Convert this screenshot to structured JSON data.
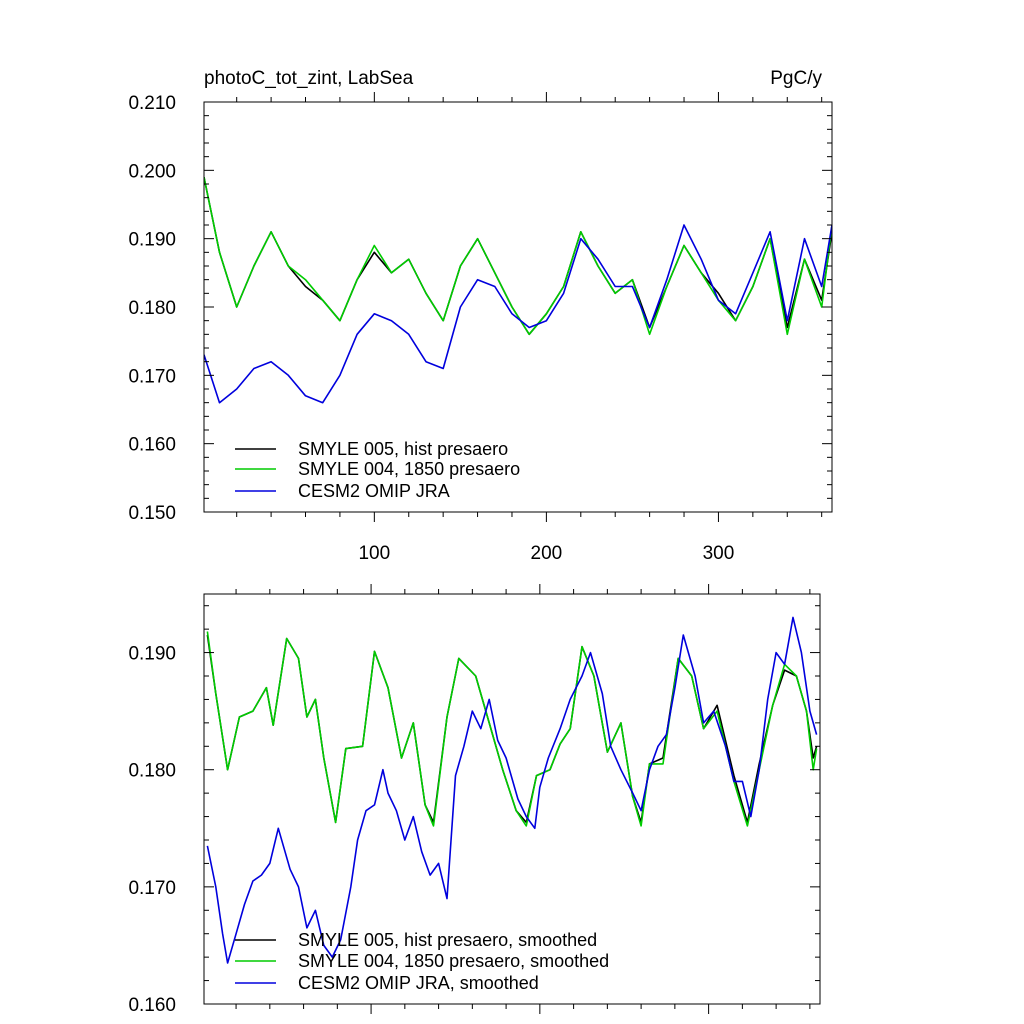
{
  "chart_data": [
    {
      "type": "line",
      "title": "photoC_tot_zint, LabSea",
      "units": "PgC/y",
      "xlabel": "",
      "ylabel": "",
      "xlim": [
        1,
        366
      ],
      "ylim": [
        0.15,
        0.21
      ],
      "xticks": [
        100,
        200,
        300
      ],
      "xtick_labels": [
        "100",
        "200",
        "300"
      ],
      "yticks": [
        0.15,
        0.16,
        0.17,
        0.18,
        0.19,
        0.2,
        0.21
      ],
      "ytick_labels": [
        "0.150",
        "0.160",
        "0.170",
        "0.180",
        "0.190",
        "0.200",
        "0.210"
      ],
      "grid": false,
      "legend_position": "bottom-left",
      "series": [
        {
          "name": "SMYLE 005, hist presaero",
          "color": "#000000",
          "x": [
            1,
            10,
            20,
            30,
            40,
            50,
            60,
            70,
            80,
            90,
            100,
            110,
            120,
            130,
            140,
            150,
            160,
            170,
            180,
            190,
            200,
            210,
            220,
            230,
            240,
            250,
            260,
            270,
            280,
            290,
            300,
            310,
            320,
            330,
            340,
            350,
            360,
            366
          ],
          "values": [
            0.199,
            0.188,
            0.18,
            0.186,
            0.191,
            0.186,
            0.183,
            0.181,
            0.178,
            0.184,
            0.188,
            0.185,
            0.187,
            0.182,
            0.178,
            0.186,
            0.19,
            0.185,
            0.18,
            0.176,
            0.179,
            0.183,
            0.191,
            0.186,
            0.182,
            0.184,
            0.177,
            0.183,
            0.189,
            0.185,
            0.182,
            0.178,
            0.183,
            0.19,
            0.177,
            0.187,
            0.181,
            0.191
          ]
        },
        {
          "name": "SMYLE 004, 1850 presaero",
          "color": "#00cc00",
          "x": [
            1,
            10,
            20,
            30,
            40,
            50,
            60,
            70,
            80,
            90,
            100,
            110,
            120,
            130,
            140,
            150,
            160,
            170,
            180,
            190,
            200,
            210,
            220,
            230,
            240,
            250,
            260,
            270,
            280,
            290,
            300,
            310,
            320,
            330,
            340,
            350,
            360,
            366
          ],
          "values": [
            0.199,
            0.188,
            0.18,
            0.186,
            0.191,
            0.186,
            0.184,
            0.181,
            0.178,
            0.184,
            0.189,
            0.185,
            0.187,
            0.182,
            0.178,
            0.186,
            0.19,
            0.185,
            0.18,
            0.176,
            0.179,
            0.183,
            0.191,
            0.186,
            0.182,
            0.184,
            0.176,
            0.183,
            0.189,
            0.185,
            0.181,
            0.178,
            0.183,
            0.19,
            0.176,
            0.187,
            0.18,
            0.192
          ]
        },
        {
          "name": "CESM2 OMIP JRA",
          "color": "#0000dd",
          "x": [
            1,
            10,
            20,
            30,
            40,
            50,
            60,
            70,
            80,
            90,
            100,
            110,
            120,
            130,
            140,
            150,
            160,
            170,
            180,
            190,
            200,
            210,
            220,
            230,
            240,
            250,
            260,
            270,
            280,
            290,
            300,
            310,
            320,
            330,
            340,
            350,
            360,
            366
          ],
          "values": [
            0.173,
            0.166,
            0.168,
            0.171,
            0.172,
            0.17,
            0.167,
            0.166,
            0.17,
            0.176,
            0.179,
            0.178,
            0.176,
            0.172,
            0.171,
            0.18,
            0.184,
            0.183,
            0.179,
            0.177,
            0.178,
            0.182,
            0.19,
            0.187,
            0.183,
            0.183,
            0.177,
            0.184,
            0.192,
            0.187,
            0.181,
            0.179,
            0.185,
            0.191,
            0.178,
            0.19,
            0.183,
            0.192
          ]
        }
      ]
    },
    {
      "type": "line",
      "title": "",
      "xlabel": "",
      "ylabel": "",
      "xlim": [
        1,
        366
      ],
      "ylim": [
        0.16,
        0.195
      ],
      "xticks": [
        100,
        200,
        300
      ],
      "yticks": [
        0.16,
        0.17,
        0.18,
        0.19
      ],
      "ytick_labels": [
        "0.160",
        "0.170",
        "0.180",
        "0.190"
      ],
      "grid": false,
      "legend_position": "bottom-left",
      "series": [
        {
          "name": "SMYLE 005, hist presaero, smoothed",
          "color": "#000000",
          "x": [
            3,
            8,
            15,
            22,
            30,
            38,
            42,
            50,
            57,
            62,
            67,
            72,
            79,
            85,
            95,
            102,
            110,
            118,
            125,
            132,
            137,
            145,
            152,
            162,
            170,
            178,
            186,
            192,
            198,
            206,
            212,
            218,
            225,
            232,
            240,
            248,
            255,
            260,
            265,
            273,
            282,
            290,
            297,
            305,
            315,
            323,
            330,
            338,
            345,
            352,
            358,
            362,
            364
          ],
          "values": [
            0.1915,
            0.1865,
            0.18,
            0.1845,
            0.185,
            0.187,
            0.1838,
            0.1912,
            0.1895,
            0.1845,
            0.186,
            0.181,
            0.1755,
            0.1818,
            0.182,
            0.1901,
            0.187,
            0.181,
            0.184,
            0.177,
            0.1755,
            0.1845,
            0.1895,
            0.188,
            0.184,
            0.18,
            0.1765,
            0.1755,
            0.1795,
            0.18,
            0.1822,
            0.1835,
            0.1905,
            0.188,
            0.1815,
            0.184,
            0.1777,
            0.1755,
            0.1805,
            0.181,
            0.1895,
            0.188,
            0.1835,
            0.1855,
            0.1795,
            0.1755,
            0.1805,
            0.1855,
            0.1885,
            0.188,
            0.185,
            0.181,
            0.182
          ]
        },
        {
          "name": "SMYLE 004, 1850 presaero, smoothed",
          "color": "#00cc00",
          "x": [
            3,
            8,
            15,
            22,
            30,
            38,
            42,
            50,
            57,
            62,
            67,
            72,
            79,
            85,
            95,
            102,
            110,
            118,
            125,
            132,
            137,
            145,
            152,
            162,
            170,
            178,
            186,
            192,
            198,
            206,
            212,
            218,
            225,
            232,
            240,
            248,
            255,
            260,
            265,
            273,
            282,
            290,
            297,
            305,
            315,
            323,
            330,
            338,
            345,
            352,
            358,
            362,
            364
          ],
          "values": [
            0.1918,
            0.1865,
            0.18,
            0.1845,
            0.185,
            0.187,
            0.1838,
            0.1912,
            0.1895,
            0.1845,
            0.186,
            0.181,
            0.1755,
            0.1818,
            0.182,
            0.1901,
            0.187,
            0.181,
            0.184,
            0.177,
            0.1752,
            0.1845,
            0.1895,
            0.188,
            0.184,
            0.18,
            0.1765,
            0.1752,
            0.1795,
            0.18,
            0.1822,
            0.1835,
            0.1905,
            0.188,
            0.1815,
            0.184,
            0.1777,
            0.1752,
            0.1805,
            0.1805,
            0.1895,
            0.188,
            0.1835,
            0.185,
            0.179,
            0.1752,
            0.18,
            0.1855,
            0.189,
            0.188,
            0.185,
            0.18,
            0.1818
          ]
        },
        {
          "name": "CESM2 OMIP JRA, smoothed",
          "color": "#0000dd",
          "x": [
            3,
            8,
            12,
            15,
            20,
            25,
            30,
            35,
            40,
            45,
            52,
            57,
            62,
            67,
            72,
            77,
            82,
            88,
            92,
            97,
            102,
            107,
            110,
            115,
            120,
            125,
            130,
            135,
            140,
            145,
            150,
            155,
            160,
            165,
            170,
            175,
            180,
            187,
            192,
            197,
            200,
            205,
            212,
            218,
            225,
            230,
            237,
            242,
            248,
            255,
            260,
            265,
            270,
            275,
            280,
            285,
            292,
            297,
            303,
            310,
            315,
            320,
            325,
            330,
            335,
            340,
            345,
            350,
            355,
            360,
            364
          ],
          "values": [
            0.1735,
            0.17,
            0.166,
            0.1635,
            0.166,
            0.1685,
            0.1705,
            0.171,
            0.172,
            0.175,
            0.1715,
            0.17,
            0.1665,
            0.168,
            0.165,
            0.164,
            0.1655,
            0.17,
            0.174,
            0.1765,
            0.177,
            0.18,
            0.178,
            0.1765,
            0.174,
            0.176,
            0.173,
            0.171,
            0.172,
            0.169,
            0.1795,
            0.182,
            0.185,
            0.1835,
            0.186,
            0.1825,
            0.181,
            0.1775,
            0.176,
            0.175,
            0.1785,
            0.181,
            0.1835,
            0.186,
            0.188,
            0.19,
            0.1865,
            0.182,
            0.18,
            0.178,
            0.1765,
            0.18,
            0.182,
            0.183,
            0.187,
            0.1915,
            0.188,
            0.184,
            0.185,
            0.182,
            0.179,
            0.179,
            0.176,
            0.18,
            0.186,
            0.19,
            0.189,
            0.193,
            0.19,
            0.185,
            0.183
          ]
        }
      ]
    }
  ]
}
